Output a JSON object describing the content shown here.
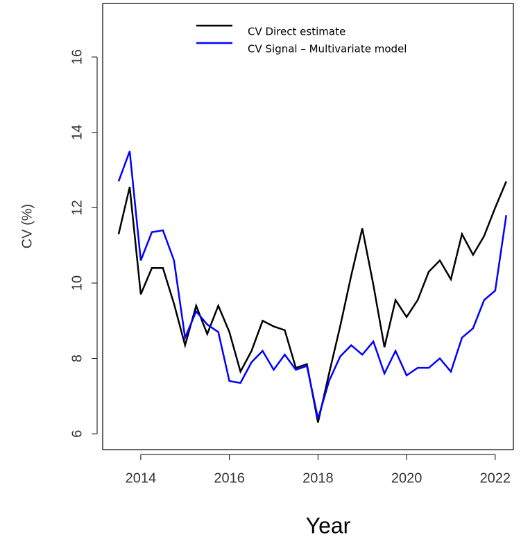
{
  "chart_data": {
    "type": "line",
    "x_label": "Year",
    "y_label": "CV (%)",
    "x": [
      2013.5,
      2013.75,
      2014,
      2014.25,
      2014.5,
      2014.75,
      2015,
      2015.25,
      2015.5,
      2015.75,
      2016,
      2016.25,
      2016.5,
      2016.75,
      2017,
      2017.25,
      2017.5,
      2017.75,
      2018,
      2018.25,
      2018.5,
      2018.75,
      2019,
      2019.25,
      2019.5,
      2019.75,
      2020,
      2020.25,
      2020.5,
      2020.75,
      2021,
      2021.25,
      2021.5,
      2021.75,
      2022,
      2022.25
    ],
    "series": [
      {
        "name": "CV Direct estimate",
        "color": "#000000",
        "values": [
          11.3,
          12.55,
          9.7,
          10.4,
          10.4,
          9.45,
          8.35,
          9.4,
          8.65,
          9.4,
          8.7,
          7.65,
          8.2,
          9.0,
          8.85,
          8.75,
          7.75,
          7.85,
          6.3,
          7.6,
          8.85,
          10.2,
          11.45,
          9.95,
          8.3,
          9.55,
          9.1,
          9.55,
          10.3,
          10.6,
          10.1,
          11.3,
          10.75,
          11.25,
          12.0,
          12.7
        ]
      },
      {
        "name": "CV Signal – Multivariate model",
        "color": "#0000ff",
        "values": [
          12.7,
          13.5,
          10.6,
          11.35,
          11.4,
          10.6,
          8.55,
          9.25,
          8.9,
          8.7,
          7.4,
          7.35,
          7.9,
          8.2,
          7.7,
          8.1,
          7.7,
          7.8,
          6.4,
          7.4,
          8.05,
          8.35,
          8.1,
          8.45,
          7.6,
          8.2,
          7.55,
          7.75,
          7.75,
          8.0,
          7.65,
          8.55,
          8.8,
          9.55,
          9.8,
          11.8
        ]
      }
    ],
    "xlim": [
      2013.14,
      2022.41
    ],
    "ylim": [
      5.58,
      17.42
    ],
    "xticks": [
      2014,
      2016,
      2018,
      2020,
      2022
    ],
    "yticks": [
      6,
      8,
      10,
      12,
      14,
      16
    ]
  }
}
